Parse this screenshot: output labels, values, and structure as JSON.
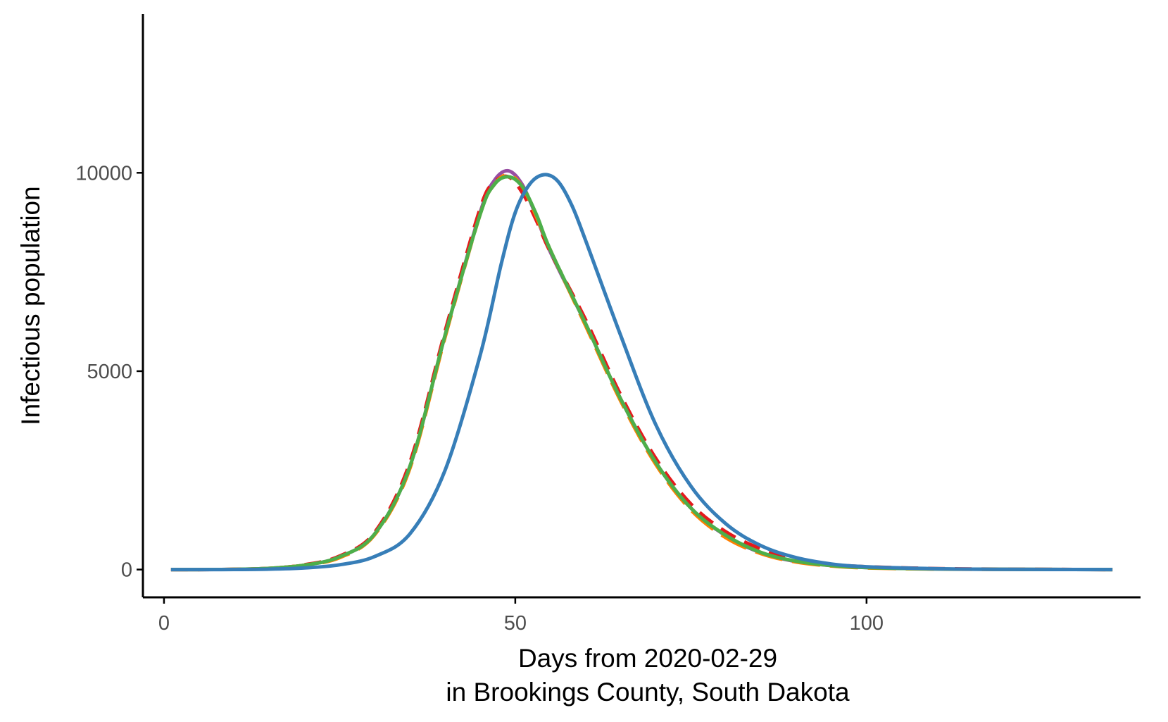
{
  "chart_data": {
    "type": "line",
    "xlabel_line1": "Days from 2020-02-29",
    "xlabel_line2": "in Brookings County, South Dakota",
    "ylabel": "Infectious population",
    "xlim": [
      -3,
      139
    ],
    "ylim": [
      -700,
      14000
    ],
    "x_ticks": [
      0,
      50,
      100
    ],
    "x_tick_labels": [
      "0",
      "50",
      "100"
    ],
    "y_ticks": [
      0,
      5000,
      10000
    ],
    "y_tick_labels": [
      "0",
      "5000",
      "10000"
    ],
    "grid": false,
    "legend": "none",
    "series": [
      {
        "color": "#984ea3",
        "dash": "none",
        "x": [
          1,
          5,
          10,
          15,
          20,
          25,
          30,
          35,
          40,
          45,
          47,
          49,
          51,
          53,
          55,
          60,
          65,
          70,
          75,
          80,
          85,
          90,
          95,
          100,
          110,
          120,
          135
        ],
        "y": [
          0,
          0,
          5,
          30,
          110,
          320,
          900,
          2600,
          5900,
          9000,
          9800,
          10050,
          9700,
          8900,
          8000,
          6200,
          4300,
          2700,
          1550,
          850,
          420,
          200,
          100,
          50,
          15,
          5,
          0
        ]
      },
      {
        "color": "#e41a1c",
        "dash": "24 14",
        "x": [
          1,
          5,
          10,
          15,
          20,
          25,
          30,
          35,
          40,
          45,
          47,
          49,
          51,
          53,
          55,
          60,
          65,
          70,
          75,
          80,
          85,
          90,
          95,
          100,
          110,
          120,
          135
        ],
        "y": [
          0,
          0,
          5,
          30,
          120,
          340,
          940,
          2700,
          6000,
          9100,
          9750,
          9900,
          9500,
          8800,
          8000,
          6300,
          4400,
          2800,
          1650,
          950,
          520,
          260,
          130,
          70,
          25,
          8,
          0
        ]
      },
      {
        "color": "#ff7f00",
        "dash": "40 14",
        "x": [
          1,
          5,
          10,
          15,
          20,
          25,
          30,
          35,
          40,
          45,
          47,
          49,
          51,
          53,
          55,
          60,
          65,
          70,
          75,
          80,
          85,
          90,
          95,
          100,
          110,
          120,
          135
        ],
        "y": [
          0,
          0,
          5,
          30,
          110,
          300,
          880,
          2550,
          5850,
          8950,
          9700,
          9950,
          9650,
          8900,
          8050,
          6150,
          4250,
          2650,
          1500,
          800,
          400,
          190,
          90,
          40,
          12,
          4,
          0
        ]
      },
      {
        "color": "#4daf4a",
        "dash": "none",
        "x": [
          1,
          5,
          10,
          15,
          20,
          25,
          30,
          35,
          40,
          45,
          47,
          49,
          51,
          53,
          55,
          60,
          65,
          70,
          75,
          80,
          85,
          90,
          95,
          100,
          110,
          120,
          135
        ],
        "y": [
          0,
          0,
          5,
          30,
          110,
          320,
          900,
          2600,
          5900,
          8950,
          9700,
          9900,
          9650,
          8950,
          8050,
          6200,
          4300,
          2700,
          1550,
          860,
          430,
          210,
          100,
          50,
          15,
          5,
          0
        ]
      },
      {
        "color": "#377eb8",
        "dash": "none",
        "x": [
          1,
          5,
          10,
          15,
          20,
          25,
          30,
          35,
          40,
          45,
          48,
          50,
          52,
          54,
          56,
          58,
          60,
          65,
          70,
          75,
          80,
          85,
          90,
          95,
          100,
          110,
          120,
          135
        ],
        "y": [
          0,
          0,
          2,
          10,
          40,
          120,
          330,
          900,
          2500,
          5400,
          7700,
          9000,
          9700,
          9950,
          9800,
          9200,
          8300,
          5900,
          3650,
          2100,
          1150,
          600,
          300,
          140,
          70,
          20,
          5,
          0
        ]
      }
    ]
  }
}
